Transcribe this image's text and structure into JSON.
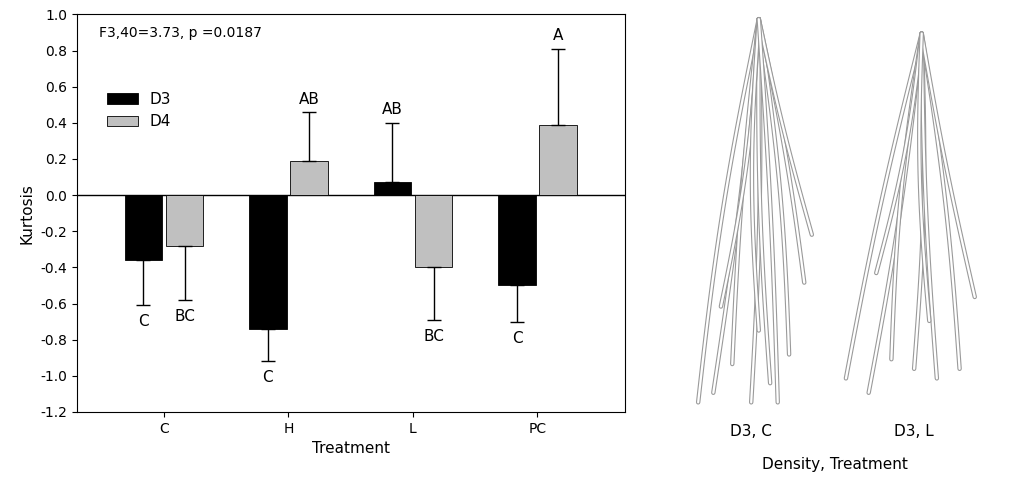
{
  "chart_data": {
    "type": "bar",
    "categories": [
      "C",
      "H",
      "L",
      "PC"
    ],
    "x_label": "Treatment",
    "y_label": "Kurtosis",
    "annotation": "F3,40=3.73, p =0.0187",
    "series": [
      {
        "name": "D3",
        "color": "#000000",
        "values": [
          -0.36,
          -0.74,
          0.07,
          -0.5
        ],
        "errors": [
          0.25,
          0.18,
          0.33,
          0.2
        ],
        "letters": [
          "C",
          "C",
          "AB",
          "C"
        ]
      },
      {
        "name": "D4",
        "color": "#c0c0c0",
        "values": [
          -0.28,
          0.19,
          -0.4,
          0.39
        ],
        "errors": [
          0.3,
          0.27,
          0.29,
          0.42
        ],
        "letters": [
          "BC",
          "AB",
          "BC",
          "A"
        ]
      }
    ],
    "ylim": [
      -1.2,
      1.0
    ],
    "yticks": [
      {
        "value": -1.2,
        "label": "-1.2"
      },
      {
        "value": -1.0,
        "label": "-1.0"
      },
      {
        "value": -0.8,
        "label": "-0.8"
      },
      {
        "value": -0.6,
        "label": "-0.6"
      },
      {
        "value": -0.4,
        "label": "-0.4"
      },
      {
        "value": -0.2,
        "label": "-0.2"
      },
      {
        "value": 0.0,
        "label": "0.0"
      },
      {
        "value": 0.2,
        "label": "0.2"
      },
      {
        "value": 0.4,
        "label": "0.4"
      },
      {
        "value": 0.6,
        "label": "0.6"
      },
      {
        "value": 0.8,
        "label": "0.8"
      },
      {
        "value": 1.0,
        "label": "1.0"
      }
    ],
    "legend": "upper left",
    "grid": false
  },
  "root_images": {
    "captions": [
      "D3, C",
      "D3, L"
    ],
    "axis_caption": "Density, Treatment"
  }
}
